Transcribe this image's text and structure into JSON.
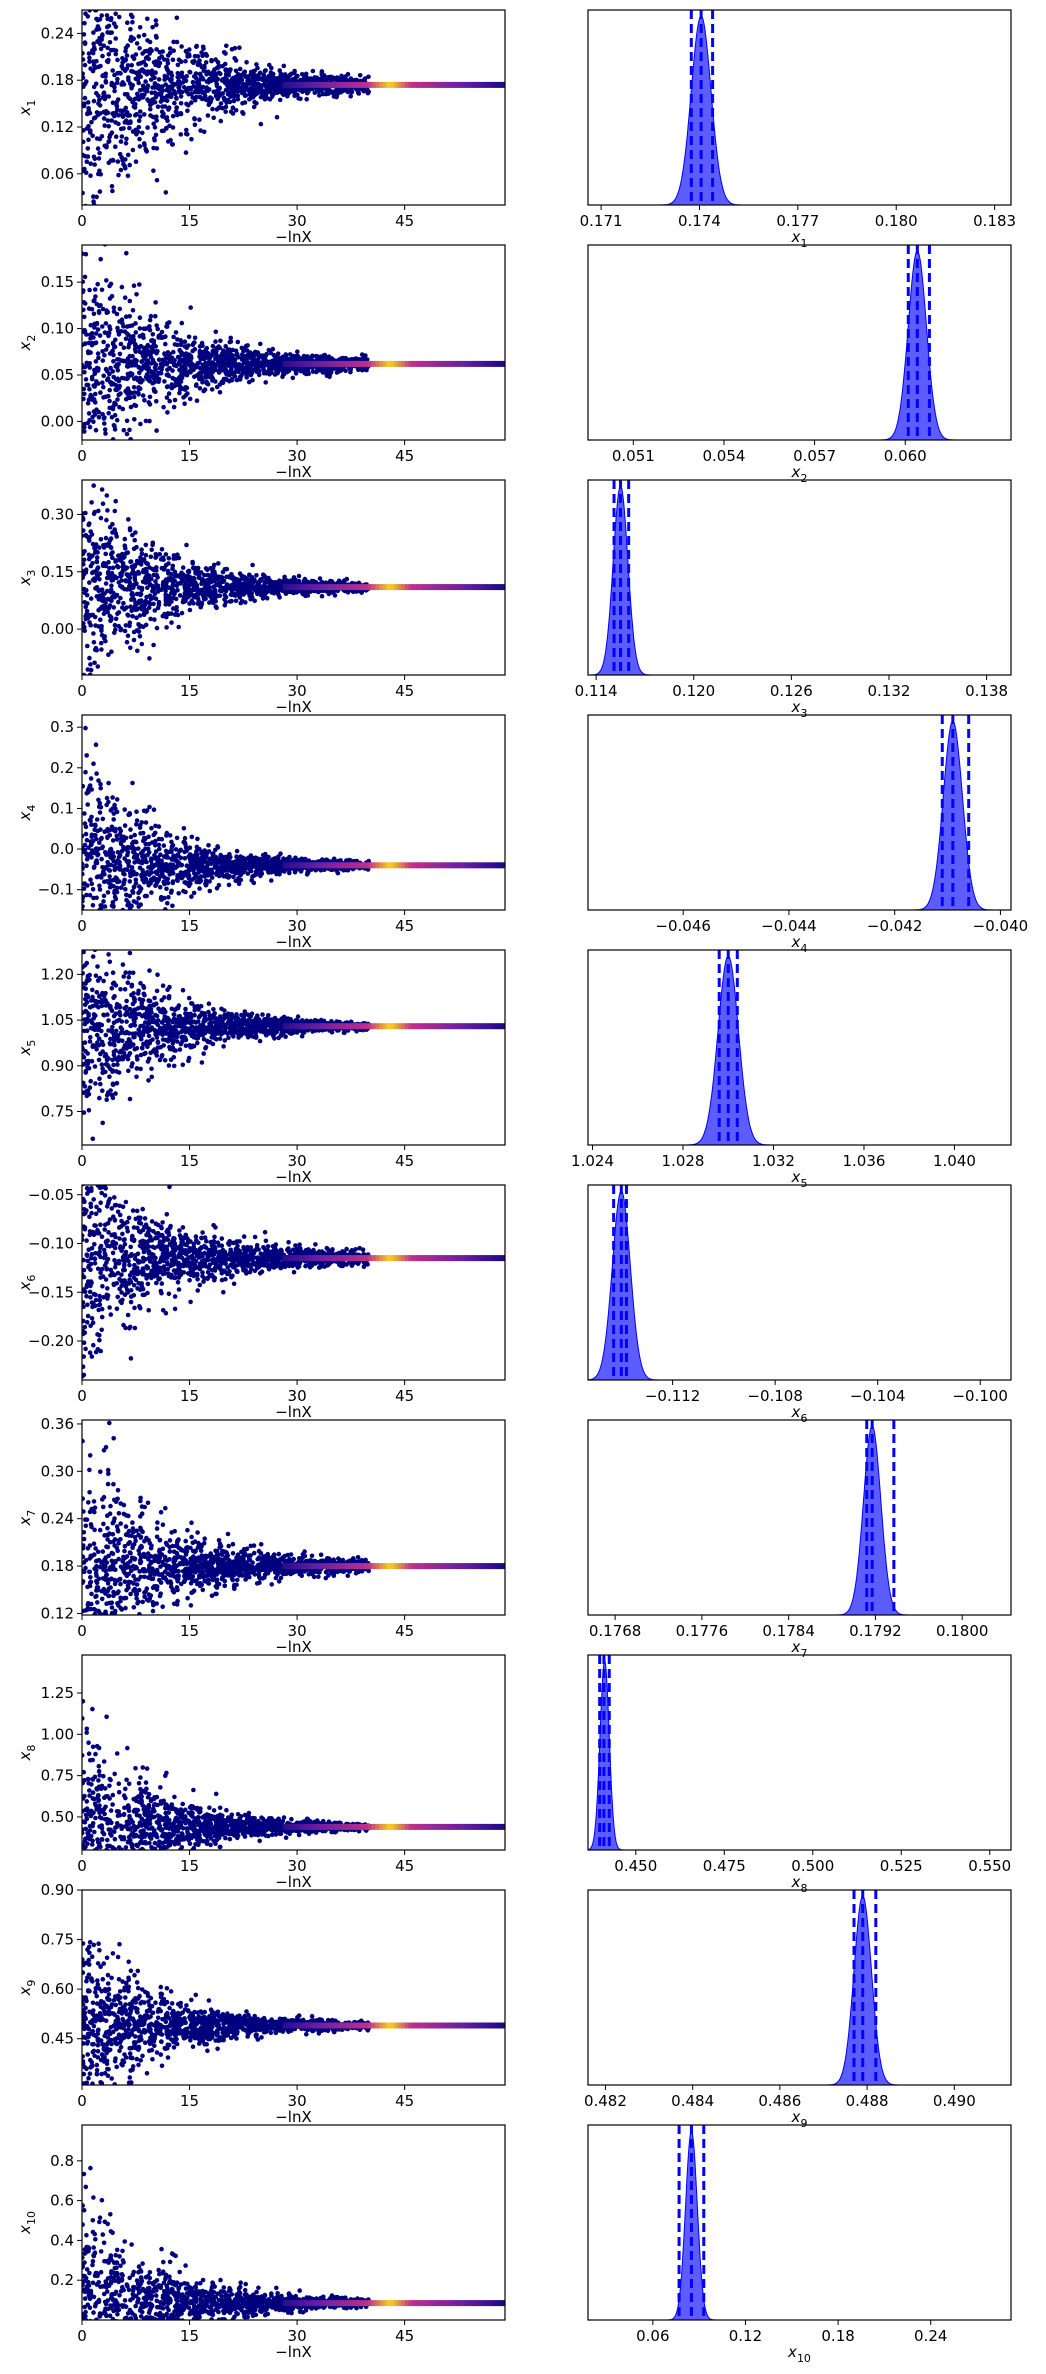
{
  "figure": {
    "type": "dynesty trace plot",
    "rows": 10
  },
  "colors": {
    "trace_points": "#00007f",
    "trace_dense_bright": "#f5d61a",
    "trace_dense_mid": "#c0308a",
    "trace_dense_dark": "#6a1fa0",
    "posterior_fill": "#3f3fff",
    "posterior_line": "#0000ff",
    "quantile_line": "#0000ff",
    "axes": "#000000"
  },
  "chart_data": [
    {
      "type": "trace",
      "param": "x1",
      "trace": {
        "xlim": [
          0,
          59
        ],
        "ylim": [
          0.02,
          0.27
        ],
        "xticks": [
          "0",
          "15",
          "30",
          "45"
        ],
        "yticks": [
          "0.06",
          "0.12",
          "0.18",
          "0.24"
        ],
        "xlabel": "−lnX",
        "ylabel_main": "x",
        "ylabel_sub": "1",
        "converge": 0.174,
        "spread_start": 0.09,
        "spread_mid": 0.05
      },
      "posterior": {
        "xlim": [
          0.1706,
          0.1835
        ],
        "xticks": [
          "0.171",
          "0.174",
          "0.177",
          "0.180",
          "0.183"
        ],
        "xlabel_main": "x",
        "xlabel_sub": "1",
        "peak": 0.17405,
        "width": 0.0003,
        "quantiles": [
          0.17375,
          0.17405,
          0.1744
        ]
      }
    },
    {
      "type": "trace",
      "param": "x2",
      "trace": {
        "xlim": [
          0,
          59
        ],
        "ylim": [
          -0.02,
          0.19
        ],
        "xticks": [
          "0",
          "15",
          "30",
          "45"
        ],
        "yticks": [
          "0.00",
          "0.05",
          "0.10",
          "0.15"
        ],
        "xlabel": "−lnX",
        "ylabel_main": "x",
        "ylabel_sub": "2",
        "converge": 0.062,
        "spread_start": 0.06,
        "spread_mid": 0.02
      },
      "posterior": {
        "xlim": [
          0.0495,
          0.0635
        ],
        "xticks": [
          "0.051",
          "0.054",
          "0.057",
          "0.060"
        ],
        "xlabel_main": "x",
        "xlabel_sub": "2",
        "peak": 0.0604,
        "width": 0.0003,
        "quantiles": [
          0.0601,
          0.0604,
          0.0608
        ]
      }
    },
    {
      "type": "trace",
      "param": "x3",
      "trace": {
        "xlim": [
          0,
          59
        ],
        "ylim": [
          -0.12,
          0.39
        ],
        "xticks": [
          "0",
          "15",
          "30",
          "45"
        ],
        "yticks": [
          "0.00",
          "0.15",
          "0.30"
        ],
        "xlabel": "−lnX",
        "ylabel_main": "x",
        "ylabel_sub": "3",
        "converge": 0.11,
        "spread_start": 0.13,
        "spread_mid": 0.05
      },
      "posterior": {
        "xlim": [
          0.1135,
          0.1395
        ],
        "xticks": [
          "0.114",
          "0.120",
          "0.126",
          "0.132",
          "0.138"
        ],
        "xlabel_main": "x",
        "xlabel_sub": "3",
        "peak": 0.1155,
        "width": 0.00045,
        "quantiles": [
          0.1151,
          0.1155,
          0.116
        ]
      }
    },
    {
      "type": "trace",
      "param": "x4",
      "trace": {
        "xlim": [
          0,
          59
        ],
        "ylim": [
          -0.15,
          0.33
        ],
        "xticks": [
          "0",
          "15",
          "30",
          "45"
        ],
        "yticks": [
          "−0.1",
          "0.0",
          "0.1",
          "0.2",
          "0.3"
        ],
        "xlabel": "−lnX",
        "ylabel_main": "x",
        "ylabel_sub": "4",
        "converge": -0.04,
        "spread_start": 0.13,
        "spread_mid": 0.03
      },
      "posterior": {
        "xlim": [
          -0.0478,
          -0.0398
        ],
        "xticks": [
          "−0.046",
          "−0.044",
          "−0.042",
          "−0.040"
        ],
        "xlabel_main": "x",
        "xlabel_sub": "4",
        "peak": -0.0409,
        "width": 0.00018,
        "quantiles": [
          -0.0411,
          -0.0409,
          -0.0406
        ]
      }
    },
    {
      "type": "trace",
      "param": "x5",
      "trace": {
        "xlim": [
          0,
          59
        ],
        "ylim": [
          0.64,
          1.28
        ],
        "xticks": [
          "0",
          "15",
          "30",
          "45"
        ],
        "yticks": [
          "0.75",
          "0.90",
          "1.05",
          "1.20"
        ],
        "xlabel": "−lnX",
        "ylabel_main": "x",
        "ylabel_sub": "5",
        "converge": 1.03,
        "spread_start": 0.15,
        "spread_mid": 0.06
      },
      "posterior": {
        "xlim": [
          1.0238,
          1.0425
        ],
        "xticks": [
          "1.024",
          "1.028",
          "1.032",
          "1.036",
          "1.040"
        ],
        "xlabel_main": "x",
        "xlabel_sub": "5",
        "peak": 1.03,
        "width": 0.00045,
        "quantiles": [
          1.0296,
          1.03,
          1.0304
        ]
      }
    },
    {
      "type": "trace",
      "param": "x6",
      "trace": {
        "xlim": [
          0,
          59
        ],
        "ylim": [
          -0.24,
          -0.04
        ],
        "xticks": [
          "0",
          "15",
          "30",
          "45"
        ],
        "yticks": [
          "−0.20",
          "−0.15",
          "−0.10",
          "−0.05"
        ],
        "xlabel": "−lnX",
        "ylabel_main": "x",
        "ylabel_sub": "6",
        "converge": -0.115,
        "spread_start": 0.05,
        "spread_mid": 0.025
      },
      "posterior": {
        "xlim": [
          -0.1153,
          -0.0988
        ],
        "xticks": [
          "−0.112",
          "−0.108",
          "−0.104",
          "−0.100"
        ],
        "xlabel_main": "x",
        "xlabel_sub": "6",
        "peak": -0.114,
        "width": 0.00035,
        "quantiles": [
          -0.1143,
          -0.114,
          -0.1138
        ]
      }
    },
    {
      "type": "trace",
      "param": "x7",
      "trace": {
        "xlim": [
          0,
          59
        ],
        "ylim": [
          0.118,
          0.365
        ],
        "xticks": [
          "0",
          "15",
          "30",
          "45"
        ],
        "yticks": [
          "0.12",
          "0.18",
          "0.24",
          "0.30",
          "0.36"
        ],
        "xlabel": "−lnX",
        "ylabel_main": "x",
        "ylabel_sub": "7",
        "converge": 0.18,
        "spread_start": 0.07,
        "spread_mid": 0.025
      },
      "posterior": {
        "xlim": [
          0.17655,
          0.18045
        ],
        "xticks": [
          "0.1768",
          "0.1776",
          "0.1784",
          "0.1792",
          "0.1800"
        ],
        "xlabel_main": "x",
        "xlabel_sub": "7",
        "peak": 0.17917,
        "width": 8e-05,
        "quantiles": [
          0.17912,
          0.17917,
          0.17937
        ]
      }
    },
    {
      "type": "trace",
      "param": "x8",
      "trace": {
        "xlim": [
          0,
          59
        ],
        "ylim": [
          0.3,
          1.48
        ],
        "xticks": [
          "0",
          "15",
          "30",
          "45"
        ],
        "yticks": [
          "0.50",
          "0.75",
          "1.00",
          "1.25"
        ],
        "xlabel": "−lnX",
        "ylabel_main": "x",
        "ylabel_sub": "8",
        "converge": 0.44,
        "spread_start": 0.3,
        "spread_mid": 0.1
      },
      "posterior": {
        "xlim": [
          0.4365,
          0.556
        ],
        "xticks": [
          "0.450",
          "0.475",
          "0.500",
          "0.525",
          "0.550"
        ],
        "xlabel_main": "x",
        "xlabel_sub": "8",
        "peak": 0.4412,
        "width": 0.0013,
        "quantiles": [
          0.4398,
          0.441,
          0.4425
        ]
      }
    },
    {
      "type": "trace",
      "param": "x9",
      "trace": {
        "xlim": [
          0,
          59
        ],
        "ylim": [
          0.31,
          0.9
        ],
        "xticks": [
          "0",
          "15",
          "30",
          "45"
        ],
        "yticks": [
          "0.45",
          "0.60",
          "0.75",
          "0.90"
        ],
        "xlabel": "−lnX",
        "ylabel_main": "x",
        "ylabel_sub": "9",
        "converge": 0.49,
        "spread_start": 0.13,
        "spread_mid": 0.05
      },
      "posterior": {
        "xlim": [
          0.4816,
          0.4913
        ],
        "xticks": [
          "0.482",
          "0.484",
          "0.486",
          "0.488",
          "0.490"
        ],
        "xlabel_main": "x",
        "xlabel_sub": "9",
        "peak": 0.4879,
        "width": 0.0002,
        "quantiles": [
          0.4877,
          0.4879,
          0.4882
        ]
      }
    },
    {
      "type": "trace",
      "param": "x10",
      "trace": {
        "xlim": [
          0,
          59
        ],
        "ylim": [
          0.0,
          0.98
        ],
        "xticks": [
          "0",
          "15",
          "30",
          "45"
        ],
        "yticks": [
          "0.2",
          "0.4",
          "0.6",
          "0.8"
        ],
        "xlabel": "−lnX",
        "ylabel_main": "x",
        "ylabel_sub": "10",
        "converge": 0.085,
        "spread_start": 0.25,
        "spread_mid": 0.12
      },
      "posterior": {
        "xlim": [
          0.018,
          0.292
        ],
        "xticks": [
          "0.06",
          "0.12",
          "0.18",
          "0.24"
        ],
        "xlabel_main": "x",
        "xlabel_sub": "10",
        "peak": 0.085,
        "width": 0.0038,
        "quantiles": [
          0.077,
          0.085,
          0.093
        ]
      }
    }
  ]
}
